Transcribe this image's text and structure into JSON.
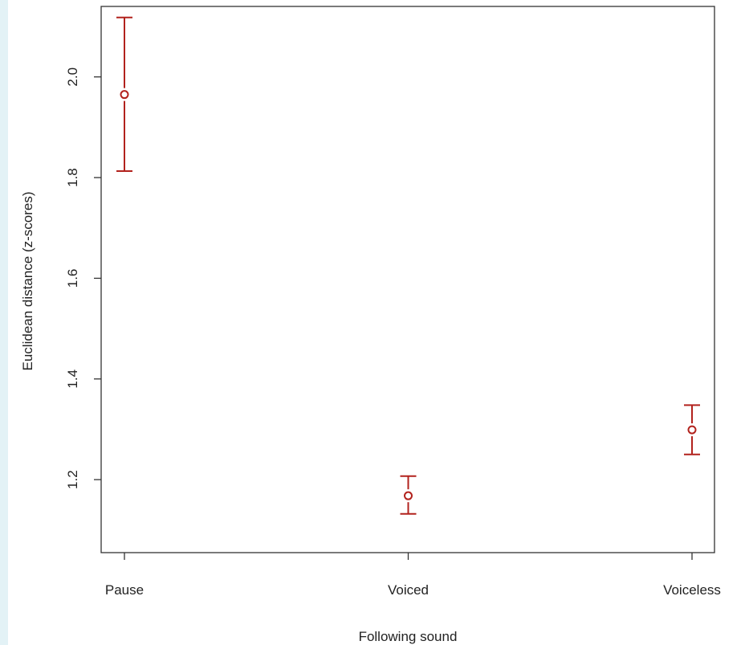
{
  "chart_data": {
    "type": "scatter",
    "error_bars": true,
    "xlabel": "Following sound",
    "ylabel": "Euclidean distance (z-scores)",
    "categories": [
      "Pause",
      "Voiced",
      "Voiceless"
    ],
    "points": [
      {
        "category": "Pause",
        "mean": 1.965,
        "lower": 1.813,
        "upper": 2.118
      },
      {
        "category": "Voiced",
        "mean": 1.168,
        "lower": 1.132,
        "upper": 1.207
      },
      {
        "category": "Voiceless",
        "mean": 1.299,
        "lower": 1.25,
        "upper": 1.348
      }
    ],
    "y_ticks": [
      1.2,
      1.4,
      1.6,
      1.8,
      2.0
    ],
    "y_tick_labels": [
      "1.2",
      "1.4",
      "1.6",
      "1.8",
      "2.0"
    ],
    "ylim": [
      1.055,
      2.14
    ],
    "grid": false,
    "legend": "none",
    "color": "#b2221d"
  }
}
